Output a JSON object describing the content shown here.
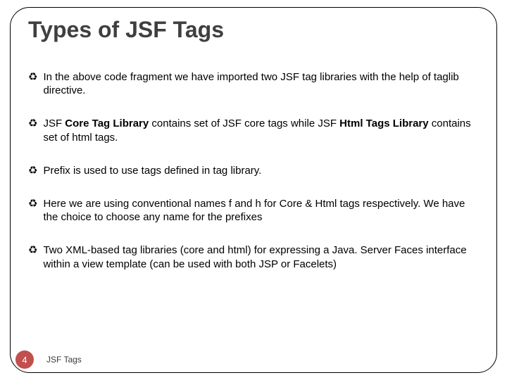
{
  "title": "Types of JSF Tags",
  "title_color": "#3f3f3f",
  "title_fontsize": 32,
  "bullet_icon": "♻",
  "bullet_fontsize": 15,
  "bullets": [
    {
      "runs": [
        {
          "t": "In the above code fragment we have imported two JSF tag libraries with the help of taglib directive.",
          "b": false
        }
      ]
    },
    {
      "runs": [
        {
          "t": "JSF ",
          "b": false
        },
        {
          "t": "Core Tag Library",
          "b": true
        },
        {
          "t": " contains set of JSF core tags while JSF ",
          "b": false
        },
        {
          "t": "Html Tags Library",
          "b": true
        },
        {
          "t": " contains set of html tags.",
          "b": false
        }
      ]
    },
    {
      "runs": [
        {
          "t": "Prefix is used to use tags defined in tag library.",
          "b": false
        }
      ]
    },
    {
      "runs": [
        {
          "t": "Here we are using conventional names f and h for Core & Html tags respectively. We have the choice to choose any name for the prefixes",
          "b": false
        }
      ]
    },
    {
      "runs": [
        {
          "t": "Two XML-based tag libraries (core and html) for expressing a Java. Server Faces interface within a view template (can be used with both JSP or Facelets)",
          "b": false
        }
      ]
    }
  ],
  "footer": {
    "number": "4",
    "number_bg": "#c0504d",
    "number_fg": "#ffffff",
    "text": "JSF Tags"
  },
  "frame": {
    "border_color": "#000000",
    "border_radius": 28
  },
  "background_color": "#ffffff"
}
